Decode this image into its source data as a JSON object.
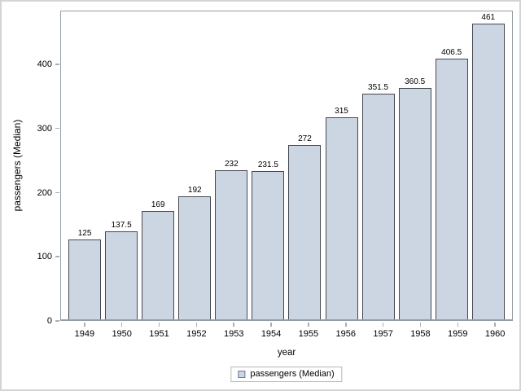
{
  "chart_data": {
    "type": "bar",
    "title": "",
    "categories": [
      "1949",
      "1950",
      "1951",
      "1952",
      "1953",
      "1954",
      "1955",
      "1956",
      "1957",
      "1958",
      "1959",
      "1960"
    ],
    "values": [
      125,
      137.5,
      169,
      192,
      232,
      231.5,
      272,
      315,
      351.5,
      360.5,
      406.5,
      461
    ],
    "value_labels": [
      "125",
      "137.5",
      "169",
      "192",
      "232",
      "231.5",
      "272",
      "315",
      "351.5",
      "360.5",
      "406.5",
      "461"
    ],
    "xlabel": "year",
    "ylabel": "passengers (Median)",
    "yticks": [
      0,
      100,
      200,
      300,
      400
    ],
    "ylim": [
      0,
      484
    ],
    "grid": false,
    "legend": {
      "position": "bottom-center",
      "entries": [
        {
          "label": "passengers (Median)",
          "swatch_fill": "#ccd6e3",
          "swatch_border": "#67799c"
        }
      ]
    },
    "colors": {
      "bar_fill": "#ccd6e3",
      "bar_border": "#44484f",
      "frame": "#959da4",
      "tick": "#a9aeb3",
      "text": "#000000",
      "outer_border": "#d4d4d4",
      "background": "#ffffff"
    }
  }
}
